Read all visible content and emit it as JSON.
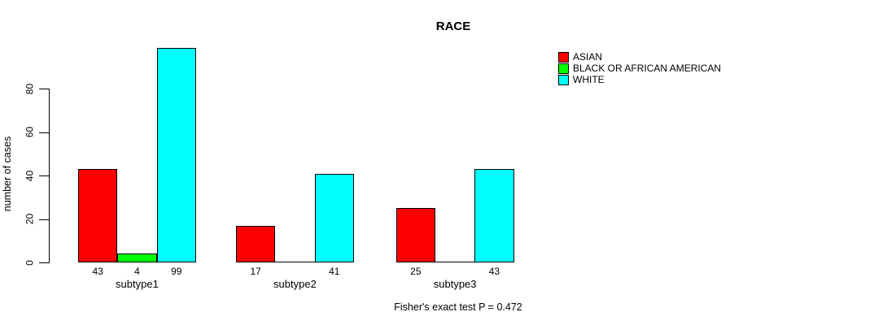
{
  "title": "RACE",
  "footer": "Fisher's exact test P = 0.472",
  "legend": {
    "items": [
      {
        "label": "ASIAN",
        "color": "#FF0000"
      },
      {
        "label": "BLACK OR AFRICAN AMERICAN",
        "color": "#00FF00"
      },
      {
        "label": "WHITE",
        "color": "#00FFFF"
      }
    ]
  },
  "chart_data": {
    "type": "bar",
    "title": "RACE",
    "xlabel": "",
    "ylabel": "number of cases",
    "categories": [
      "subtype1",
      "subtype2",
      "subtype3"
    ],
    "series": [
      {
        "name": "ASIAN",
        "color": "#FF0000",
        "values": [
          43,
          17,
          25
        ],
        "bar_labels": [
          "43",
          "17",
          "25"
        ]
      },
      {
        "name": "BLACK OR AFRICAN AMERICAN",
        "color": "#00FF00",
        "values": [
          4,
          0,
          0
        ],
        "bar_labels": [
          "4",
          "",
          ""
        ]
      },
      {
        "name": "WHITE",
        "color": "#00FFFF",
        "values": [
          99,
          41,
          43
        ],
        "bar_labels": [
          "99",
          "41",
          "43"
        ]
      }
    ],
    "ylim": [
      0,
      80
    ],
    "yticks": [
      0,
      20,
      40,
      60,
      80
    ],
    "grid": false,
    "legend_position": "right",
    "annotation": "Fisher's exact test P = 0.472"
  }
}
